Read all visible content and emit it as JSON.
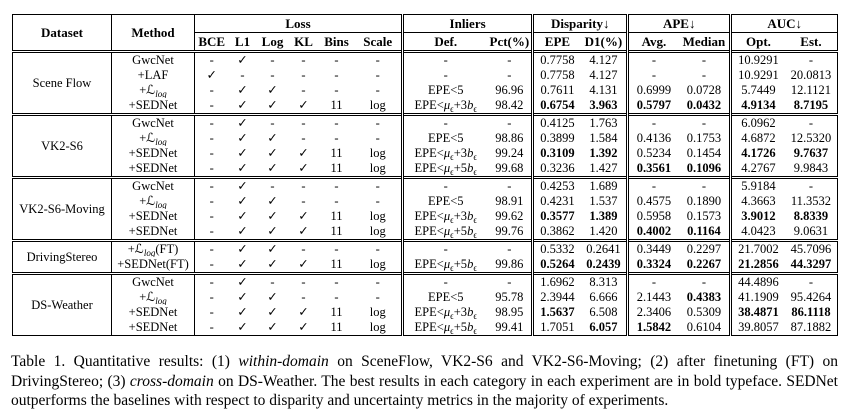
{
  "colors": {
    "text": "#000000",
    "background": "#ffffff",
    "border": "#000000"
  },
  "header": {
    "dataset": "Dataset",
    "method": "Method",
    "groups": [
      {
        "label": "Loss",
        "cols": [
          "BCE",
          "L1",
          "Log",
          "KL",
          "Bins",
          "Scale"
        ]
      },
      {
        "label": "Inliers",
        "cols": [
          "Def.",
          "Pct(%)"
        ]
      },
      {
        "label": "Disparity↓",
        "cols": [
          "EPE",
          "D1(%)"
        ]
      },
      {
        "label": "APE↓",
        "cols": [
          "Avg.",
          "Median"
        ]
      },
      {
        "label": "AUC↓",
        "cols": [
          "Opt.",
          "Est."
        ]
      }
    ]
  },
  "body": [
    {
      "dataset": "Scene Flow",
      "rows": [
        {
          "method": "GwcNet",
          "loss": [
            "-",
            "✓",
            "-",
            "-",
            "-",
            "-"
          ],
          "def": "-",
          "pct": "-",
          "metrics": [
            "0.7758",
            "4.127",
            "-",
            "-",
            "10.9291",
            "-"
          ],
          "bold": [
            false,
            false,
            false,
            false,
            false,
            false
          ]
        },
        {
          "method": "+LAF",
          "loss": [
            "✓",
            "-",
            "-",
            "-",
            "-",
            "-"
          ],
          "def": "-",
          "pct": "-",
          "metrics": [
            "0.7758",
            "4.127",
            "-",
            "-",
            "10.9291",
            "20.0813"
          ],
          "bold": [
            false,
            false,
            false,
            false,
            false,
            false
          ]
        },
        {
          "method": "+ℒ_{*log*}",
          "loss": [
            "-",
            "✓",
            "✓",
            "-",
            "-",
            "-"
          ],
          "def": "EPE<5",
          "pct": "96.96",
          "metrics": [
            "0.7611",
            "4.131",
            "0.6999",
            "0.0728",
            "5.7449",
            "12.1121"
          ],
          "bold": [
            false,
            false,
            false,
            false,
            false,
            false
          ]
        },
        {
          "method": "+SEDNet",
          "loss": [
            "-",
            "✓",
            "✓",
            "✓",
            "11",
            "log"
          ],
          "def": "EPE<*μ*_{ϵ}+3*b*_{ϵ}",
          "pct": "98.42",
          "metrics": [
            "0.6754",
            "3.963",
            "0.5797",
            "0.0432",
            "4.9134",
            "8.7195"
          ],
          "bold": [
            true,
            true,
            true,
            true,
            true,
            true
          ]
        }
      ]
    },
    {
      "dataset": "VK2-S6",
      "rows": [
        {
          "method": "GwcNet",
          "loss": [
            "-",
            "✓",
            "-",
            "-",
            "-",
            "-"
          ],
          "def": "-",
          "pct": "-",
          "metrics": [
            "0.4125",
            "1.763",
            "-",
            "-",
            "6.0962",
            "-"
          ],
          "bold": [
            false,
            false,
            false,
            false,
            false,
            false
          ]
        },
        {
          "method": "+ℒ_{*log*}",
          "loss": [
            "-",
            "✓",
            "✓",
            "-",
            "-",
            "-"
          ],
          "def": "EPE<5",
          "pct": "98.86",
          "metrics": [
            "0.3899",
            "1.584",
            "0.4136",
            "0.1753",
            "4.6872",
            "12.5320"
          ],
          "bold": [
            false,
            false,
            false,
            false,
            false,
            false
          ]
        },
        {
          "method": "+SEDNet",
          "loss": [
            "-",
            "✓",
            "✓",
            "✓",
            "11",
            "log"
          ],
          "def": "EPE<*μ*_{ϵ}+3*b*_{ϵ}",
          "pct": "99.24",
          "metrics": [
            "0.3109",
            "1.392",
            "0.5234",
            "0.1454",
            "4.1726",
            "9.7637"
          ],
          "bold": [
            true,
            true,
            false,
            false,
            true,
            true
          ]
        },
        {
          "method": "+SEDNet",
          "loss": [
            "-",
            "✓",
            "✓",
            "✓",
            "11",
            "log"
          ],
          "def": "EPE<*μ*_{ϵ}+5*b*_{ϵ}",
          "pct": "99.68",
          "metrics": [
            "0.3236",
            "1.427",
            "0.3561",
            "0.1096",
            "4.2767",
            "9.9843"
          ],
          "bold": [
            false,
            false,
            true,
            true,
            false,
            false
          ]
        }
      ]
    },
    {
      "dataset": "VK2-S6-Moving",
      "rows": [
        {
          "method": "GwcNet",
          "loss": [
            "-",
            "✓",
            "-",
            "-",
            "-",
            "-"
          ],
          "def": "-",
          "pct": "-",
          "metrics": [
            "0.4253",
            "1.689",
            "-",
            "-",
            "5.9184",
            "-"
          ],
          "bold": [
            false,
            false,
            false,
            false,
            false,
            false
          ]
        },
        {
          "method": "+ℒ_{*log*}",
          "loss": [
            "-",
            "✓",
            "✓",
            "-",
            "-",
            "-"
          ],
          "def": "EPE<5",
          "pct": "98.91",
          "metrics": [
            "0.4231",
            "1.537",
            "0.4575",
            "0.1890",
            "4.3663",
            "11.3532"
          ],
          "bold": [
            false,
            false,
            false,
            false,
            false,
            false
          ]
        },
        {
          "method": "+SEDNet",
          "loss": [
            "-",
            "✓",
            "✓",
            "✓",
            "11",
            "log"
          ],
          "def": "EPE<*μ*_{ϵ}+3*b*_{ϵ}",
          "pct": "99.62",
          "metrics": [
            "0.3577",
            "1.389",
            "0.5958",
            "0.1573",
            "3.9012",
            "8.8339"
          ],
          "bold": [
            true,
            true,
            false,
            false,
            true,
            true
          ]
        },
        {
          "method": "+SEDNet",
          "loss": [
            "-",
            "✓",
            "✓",
            "✓",
            "11",
            "log"
          ],
          "def": "EPE<*μ*_{ϵ}+5*b*_{ϵ}",
          "pct": "99.76",
          "metrics": [
            "0.3862",
            "1.420",
            "0.4002",
            "0.1164",
            "4.0423",
            "9.0631"
          ],
          "bold": [
            false,
            false,
            true,
            true,
            false,
            false
          ]
        }
      ]
    },
    {
      "dataset": "DrivingStereo",
      "rows": [
        {
          "method": "+ℒ_{*log*}(FT)",
          "loss": [
            "-",
            "✓",
            "✓",
            "-",
            "-",
            "-"
          ],
          "def": "-",
          "pct": "-",
          "metrics": [
            "0.5332",
            "0.2641",
            "0.3449",
            "0.2297",
            "21.7002",
            "45.7096"
          ],
          "bold": [
            false,
            false,
            false,
            false,
            false,
            false
          ]
        },
        {
          "method": "+SEDNet(FT)",
          "loss": [
            "-",
            "✓",
            "✓",
            "✓",
            "11",
            "log"
          ],
          "def": "EPE<*μ*_{ϵ}+5*b*_{ϵ}",
          "pct": "99.86",
          "metrics": [
            "0.5264",
            "0.2439",
            "0.3324",
            "0.2267",
            "21.2856",
            "44.3297"
          ],
          "bold": [
            true,
            true,
            true,
            true,
            true,
            true
          ]
        }
      ]
    },
    {
      "dataset": "DS-Weather",
      "rows": [
        {
          "method": "GwcNet",
          "loss": [
            "-",
            "✓",
            "-",
            "-",
            "-",
            "-"
          ],
          "def": "-",
          "pct": "-",
          "metrics": [
            "1.6962",
            "8.313",
            "-",
            "-",
            "44.4896",
            "-"
          ],
          "bold": [
            false,
            false,
            false,
            false,
            false,
            false
          ]
        },
        {
          "method": "+ℒ_{*log*}",
          "loss": [
            "-",
            "✓",
            "✓",
            "-",
            "-",
            "-"
          ],
          "def": "EPE<5",
          "pct": "95.78",
          "metrics": [
            "2.3944",
            "6.666",
            "2.1443",
            "0.4383",
            "41.1909",
            "95.4264"
          ],
          "bold": [
            false,
            false,
            false,
            true,
            false,
            false
          ]
        },
        {
          "method": "+SEDNet",
          "loss": [
            "-",
            "✓",
            "✓",
            "✓",
            "11",
            "log"
          ],
          "def": "EPE<*μ*_{ϵ}+3*b*_{ϵ}",
          "pct": "98.95",
          "metrics": [
            "1.5637",
            "6.508",
            "2.3406",
            "0.5309",
            "38.4871",
            "86.1118"
          ],
          "bold": [
            true,
            false,
            false,
            false,
            true,
            true
          ]
        },
        {
          "method": "+SEDNet",
          "loss": [
            "-",
            "✓",
            "✓",
            "✓",
            "11",
            "log"
          ],
          "def": "EPE<*μ*_{ϵ}+5*b*_{ϵ}",
          "pct": "99.41",
          "metrics": [
            "1.7051",
            "6.057",
            "1.5842",
            "0.6104",
            "39.8057",
            "87.1882"
          ],
          "bold": [
            false,
            true,
            true,
            false,
            false,
            false
          ]
        }
      ]
    }
  ],
  "caption": "Table 1. Quantitative results: (1) *within-domain* on SceneFlow, VK2-S6 and VK2-S6-Moving; (2) after finetuning (FT) on DrivingStereo; (3) *cross-domain* on DS-Weather.  The best results in each category in each experiment are in bold typeface.  SEDNet outperforms the baselines with respect to disparity and uncertainty metrics in the majority of experiments."
}
